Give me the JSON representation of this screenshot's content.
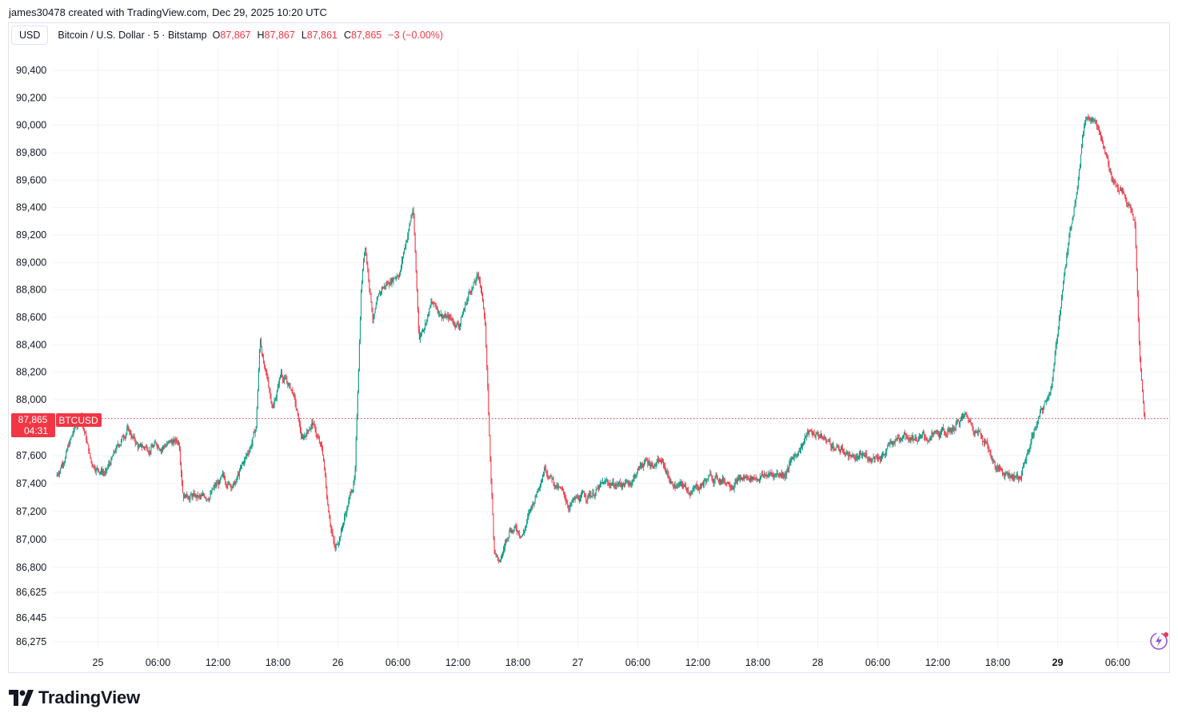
{
  "header": {
    "credit": "james30478 created with TradingView.com, Dec 29, 2025 10:20 UTC"
  },
  "legend": {
    "currency": "USD",
    "symbol": "Bitcoin / U.S. Dollar · 5 · Bitstamp",
    "open_label": "O",
    "open": "87,867",
    "high_label": "H",
    "high": "87,867",
    "low_label": "L",
    "low": "87,861",
    "close_label": "C",
    "close": "87,865",
    "change": "−3 (−0.00%)"
  },
  "price_tag": {
    "price": "87,865",
    "countdown": "04:31",
    "ticker": "BTCUSD"
  },
  "logo_text": "TradingView",
  "colors": {
    "up": "#089981",
    "down": "#f23645",
    "grid": "#f0f3fa",
    "text": "#131722"
  },
  "chart_data": {
    "type": "candlestick",
    "ylim": [
      86275,
      90520
    ],
    "y_ticks": [
      {
        "value": 90400,
        "label": "90,400"
      },
      {
        "value": 90200,
        "label": "90,200"
      },
      {
        "value": 90000,
        "label": "90,000"
      },
      {
        "value": 89800,
        "label": "89,800"
      },
      {
        "value": 89600,
        "label": "89,600"
      },
      {
        "value": 89400,
        "label": "89,400"
      },
      {
        "value": 89200,
        "label": "89,200"
      },
      {
        "value": 89000,
        "label": "89,000"
      },
      {
        "value": 88800,
        "label": "88,800"
      },
      {
        "value": 88600,
        "label": "88,600"
      },
      {
        "value": 88400,
        "label": "88,400"
      },
      {
        "value": 88200,
        "label": "88,200"
      },
      {
        "value": 88000,
        "label": "88,000"
      },
      {
        "value": 87600,
        "label": "87,600"
      },
      {
        "value": 87400,
        "label": "87,400"
      },
      {
        "value": 87200,
        "label": "87,200"
      },
      {
        "value": 87000,
        "label": "87,000"
      },
      {
        "value": 86800,
        "label": "86,800"
      },
      {
        "value": 86625,
        "label": "86,625"
      },
      {
        "value": 86445,
        "label": "86,445"
      },
      {
        "value": 86275,
        "label": "86,275"
      }
    ],
    "x_ticks": [
      {
        "hour": 24,
        "label": "25",
        "bold": false
      },
      {
        "hour": 30,
        "label": "06:00",
        "bold": false
      },
      {
        "hour": 36,
        "label": "12:00",
        "bold": false
      },
      {
        "hour": 42,
        "label": "18:00",
        "bold": false
      },
      {
        "hour": 48,
        "label": "26",
        "bold": false
      },
      {
        "hour": 54,
        "label": "06:00",
        "bold": false
      },
      {
        "hour": 60,
        "label": "12:00",
        "bold": false
      },
      {
        "hour": 66,
        "label": "18:00",
        "bold": false
      },
      {
        "hour": 72,
        "label": "27",
        "bold": false
      },
      {
        "hour": 78,
        "label": "06:00",
        "bold": false
      },
      {
        "hour": 84,
        "label": "12:00",
        "bold": false
      },
      {
        "hour": 90,
        "label": "18:00",
        "bold": false
      },
      {
        "hour": 96,
        "label": "28",
        "bold": false
      },
      {
        "hour": 102,
        "label": "06:00",
        "bold": false
      },
      {
        "hour": 108,
        "label": "12:00",
        "bold": false
      },
      {
        "hour": 114,
        "label": "18:00",
        "bold": false
      },
      {
        "hour": 120,
        "label": "29",
        "bold": true
      },
      {
        "hour": 126,
        "label": "06:00",
        "bold": false
      }
    ],
    "last_price": 87865,
    "bar_minutes": 5,
    "price_path_keypoints": [
      {
        "hour": 19.9,
        "price": 87450
      },
      {
        "hour": 22.4,
        "price": 87900
      },
      {
        "hour": 23.4,
        "price": 87550
      },
      {
        "hour": 24.9,
        "price": 87480
      },
      {
        "hour": 27.0,
        "price": 87800
      },
      {
        "hour": 28.2,
        "price": 87650
      },
      {
        "hour": 30.2,
        "price": 87680
      },
      {
        "hour": 32.2,
        "price": 87700
      },
      {
        "hour": 32.6,
        "price": 87350
      },
      {
        "hour": 34.5,
        "price": 87280
      },
      {
        "hour": 36.5,
        "price": 87420
      },
      {
        "hour": 37.8,
        "price": 87400
      },
      {
        "hour": 39.0,
        "price": 87600
      },
      {
        "hour": 39.9,
        "price": 87800
      },
      {
        "hour": 40.3,
        "price": 88450
      },
      {
        "hour": 40.8,
        "price": 88200
      },
      {
        "hour": 41.6,
        "price": 87950
      },
      {
        "hour": 42.4,
        "price": 88200
      },
      {
        "hour": 43.6,
        "price": 88050
      },
      {
        "hour": 44.5,
        "price": 87700
      },
      {
        "hour": 45.5,
        "price": 87850
      },
      {
        "hour": 46.6,
        "price": 87600
      },
      {
        "hour": 47.0,
        "price": 87300
      },
      {
        "hour": 47.8,
        "price": 86920
      },
      {
        "hour": 48.7,
        "price": 87150
      },
      {
        "hour": 49.8,
        "price": 87450
      },
      {
        "hour": 50.4,
        "price": 88800
      },
      {
        "hour": 50.8,
        "price": 89150
      },
      {
        "hour": 51.6,
        "price": 88600
      },
      {
        "hour": 52.5,
        "price": 88800
      },
      {
        "hour": 53.1,
        "price": 88850
      },
      {
        "hour": 54.3,
        "price": 88950
      },
      {
        "hour": 55.6,
        "price": 89400
      },
      {
        "hour": 56.2,
        "price": 88450
      },
      {
        "hour": 57.4,
        "price": 88700
      },
      {
        "hour": 59.0,
        "price": 88600
      },
      {
        "hour": 60.2,
        "price": 88550
      },
      {
        "hour": 61.3,
        "price": 88800
      },
      {
        "hour": 62.2,
        "price": 88900
      },
      {
        "hour": 62.8,
        "price": 88600
      },
      {
        "hour": 63.3,
        "price": 87600
      },
      {
        "hour": 63.7,
        "price": 86950
      },
      {
        "hour": 64.3,
        "price": 86820
      },
      {
        "hour": 65.3,
        "price": 87100
      },
      {
        "hour": 66.6,
        "price": 87050
      },
      {
        "hour": 67.8,
        "price": 87300
      },
      {
        "hour": 68.8,
        "price": 87550
      },
      {
        "hour": 69.8,
        "price": 87400
      },
      {
        "hour": 71.2,
        "price": 87250
      },
      {
        "hour": 72.6,
        "price": 87300
      },
      {
        "hour": 75.0,
        "price": 87400
      },
      {
        "hour": 77.2,
        "price": 87400
      },
      {
        "hour": 78.6,
        "price": 87550
      },
      {
        "hour": 80.5,
        "price": 87550
      },
      {
        "hour": 81.5,
        "price": 87400
      },
      {
        "hour": 83.6,
        "price": 87350
      },
      {
        "hour": 85.4,
        "price": 87450
      },
      {
        "hour": 87.2,
        "price": 87420
      },
      {
        "hour": 89.8,
        "price": 87450
      },
      {
        "hour": 92.8,
        "price": 87480
      },
      {
        "hour": 95.0,
        "price": 87750
      },
      {
        "hour": 96.0,
        "price": 87760
      },
      {
        "hour": 98.0,
        "price": 87650
      },
      {
        "hour": 100.3,
        "price": 87580
      },
      {
        "hour": 102.8,
        "price": 87620
      },
      {
        "hour": 104.7,
        "price": 87780
      },
      {
        "hour": 106.5,
        "price": 87720
      },
      {
        "hour": 108.8,
        "price": 87750
      },
      {
        "hour": 110.8,
        "price": 87880
      },
      {
        "hour": 112.8,
        "price": 87720
      },
      {
        "hour": 114.0,
        "price": 87500
      },
      {
        "hour": 116.4,
        "price": 87450
      },
      {
        "hour": 117.8,
        "price": 87800
      },
      {
        "hour": 118.8,
        "price": 87950
      },
      {
        "hour": 119.6,
        "price": 88150
      },
      {
        "hour": 120.6,
        "price": 88850
      },
      {
        "hour": 121.8,
        "price": 89450
      },
      {
        "hour": 122.8,
        "price": 90050
      },
      {
        "hour": 123.6,
        "price": 90100
      },
      {
        "hour": 124.4,
        "price": 89900
      },
      {
        "hour": 125.4,
        "price": 89650
      },
      {
        "hour": 126.6,
        "price": 89500
      },
      {
        "hour": 127.8,
        "price": 89300
      },
      {
        "hour": 128.3,
        "price": 88300
      },
      {
        "hour": 128.8,
        "price": 87865
      }
    ]
  }
}
